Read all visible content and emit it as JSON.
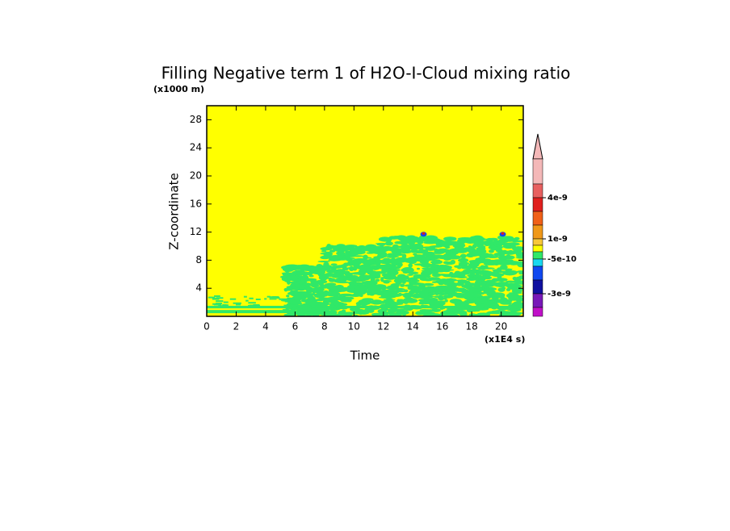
{
  "chart_data": {
    "type": "contour",
    "title": "Filling Negative term 1 of H2O-I-Cloud mixing ratio",
    "x_label": "Time",
    "y_label": "Z-coordinate",
    "x_unit": "(x1E4 s)",
    "y_unit": "(x1000 m)",
    "xlim": [
      0,
      21.5
    ],
    "xticks": [
      0,
      2,
      4,
      6,
      8,
      10,
      12,
      14,
      16,
      18,
      20
    ],
    "ylim": [
      0,
      30
    ],
    "yticks": [
      4,
      8,
      12,
      16,
      20,
      24,
      28
    ],
    "colorbar": {
      "colors": [
        "#f4b8b8",
        "#e86060",
        "#e0201e",
        "#f06018",
        "#f09818",
        "#f8c838",
        "#ffff00",
        "#30e868",
        "#18d8f0",
        "#1048f0",
        "#1010a0",
        "#7818b8",
        "#c010c8"
      ],
      "ticks": [
        4e-09,
        1e-09,
        -5e-10,
        -3e-09
      ]
    }
  }
}
